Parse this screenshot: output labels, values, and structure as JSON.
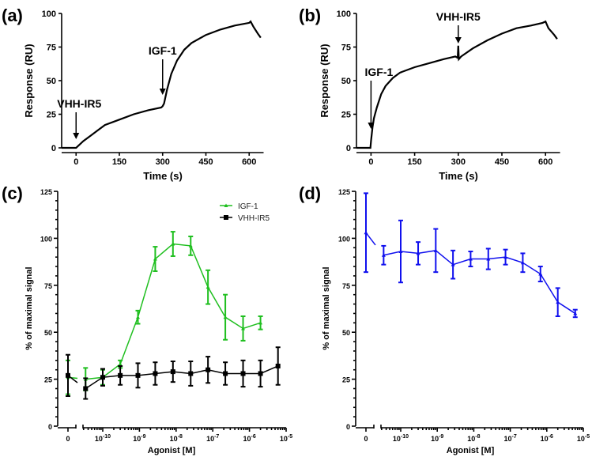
{
  "chart_data": [
    {
      "panel": "(a)",
      "type": "line",
      "xlabel": "Time (s)",
      "ylabel": "Response (RU)",
      "xlim": [
        -50,
        650
      ],
      "ylim": [
        0,
        100
      ],
      "xticks": [
        "0",
        "150",
        "300",
        "450",
        "600"
      ],
      "yticks": [
        "0",
        "25",
        "50",
        "75",
        "100"
      ],
      "annotations": [
        {
          "text": "VHH-IR5",
          "x": 0
        },
        {
          "text": "IGF-1",
          "x": 300
        }
      ],
      "series": [
        {
          "color": "#000000",
          "x": [
            -50,
            -2,
            0,
            25,
            50,
            75,
            100,
            150,
            200,
            250,
            295,
            300,
            305,
            315,
            330,
            350,
            375,
            400,
            450,
            500,
            550,
            600,
            605,
            615,
            630,
            640
          ],
          "y": [
            0,
            0,
            0,
            5,
            9,
            13,
            17,
            21,
            25,
            28,
            30,
            31,
            33,
            43,
            55,
            65,
            73,
            78,
            84,
            88,
            91,
            93,
            94,
            90,
            85,
            82
          ]
        }
      ]
    },
    {
      "panel": "(b)",
      "type": "line",
      "xlabel": "Time (s)",
      "ylabel": "Response (RU)",
      "xlim": [
        -50,
        650
      ],
      "ylim": [
        0,
        100
      ],
      "xticks": [
        "0",
        "150",
        "300",
        "450",
        "600"
      ],
      "yticks": [
        "0",
        "25",
        "50",
        "75",
        "100"
      ],
      "annotations": [
        {
          "text": "IGF-1",
          "x": 0
        },
        {
          "text": "VHH-IR5",
          "x": 300
        }
      ],
      "series": [
        {
          "color": "#000000",
          "x": [
            -50,
            -2,
            0,
            5,
            10,
            20,
            35,
            50,
            75,
            100,
            150,
            200,
            250,
            290,
            298,
            300,
            302,
            310,
            350,
            400,
            450,
            500,
            550,
            590,
            600,
            610,
            630,
            640
          ],
          "y": [
            0,
            0,
            5,
            15,
            22,
            30,
            40,
            46,
            52,
            56,
            60,
            63,
            66,
            68,
            67,
            76,
            66,
            68,
            74,
            80,
            85,
            89,
            91,
            93,
            94,
            89,
            84,
            81
          ]
        }
      ]
    },
    {
      "panel": "(c)",
      "type": "line",
      "xlabel": "Agonist [M]",
      "ylabel": "% of maximal signal",
      "xscale": "log (with 0 on broken axis)",
      "ylim": [
        0,
        125
      ],
      "xticks": [
        {
          "b": "0",
          "e": ""
        },
        {
          "b": "10",
          "e": "-10"
        },
        {
          "b": "10",
          "e": "-9"
        },
        {
          "b": "10",
          "e": "-8"
        },
        {
          "b": "10",
          "e": "-7"
        },
        {
          "b": "10",
          "e": "-6"
        },
        {
          "b": "10",
          "e": "-5"
        }
      ],
      "yticks": [
        "0",
        "25",
        "50",
        "75",
        "100",
        "125"
      ],
      "legend": "top-right",
      "series": [
        {
          "name": "IGF-1",
          "color": "#1fbf1f",
          "marker": "triangle",
          "x": [
            0,
            3.4e-11,
            1e-10,
            3e-10,
            9.1e-10,
            2.7e-09,
            8.2e-09,
            2.5e-08,
            7.4e-08,
            2.2e-07,
            6.7e-07,
            2e-06
          ],
          "y": [
            26,
            25,
            26,
            33,
            58,
            89,
            97,
            96,
            74,
            58,
            52,
            55
          ],
          "err": [
            9,
            6,
            4,
            2,
            3.5,
            6.5,
            6.5,
            5,
            9,
            12,
            6.5,
            3.5
          ]
        },
        {
          "name": "VHH-IR5",
          "color": "#000000",
          "marker": "square",
          "x": [
            0,
            3.4e-11,
            1e-10,
            3e-10,
            9.1e-10,
            2.7e-09,
            8.2e-09,
            2.5e-08,
            7.4e-08,
            2.2e-07,
            6.7e-07,
            2e-06,
            6e-06
          ],
          "y": [
            27,
            20,
            26,
            27,
            27,
            28,
            29,
            28,
            30,
            28,
            28,
            28,
            32
          ],
          "err": [
            11,
            5.5,
            4.5,
            5,
            6.5,
            6,
            5.5,
            6.5,
            7,
            6,
            7,
            7,
            10
          ]
        }
      ]
    },
    {
      "panel": "(d)",
      "type": "line",
      "xlabel": "Agonist [M]",
      "ylabel": "% of maximal signal",
      "xscale": "log (with 0 on broken axis)",
      "ylim": [
        0,
        125
      ],
      "xticks": [
        {
          "b": "0",
          "e": ""
        },
        {
          "b": "10",
          "e": "-10"
        },
        {
          "b": "10",
          "e": "-9"
        },
        {
          "b": "10",
          "e": "-8"
        },
        {
          "b": "10",
          "e": "-7"
        },
        {
          "b": "10",
          "e": "-6"
        },
        {
          "b": "10",
          "e": "-5"
        }
      ],
      "yticks": [
        "0",
        "25",
        "50",
        "75",
        "100",
        "125"
      ],
      "series": [
        {
          "color": "#1010ee",
          "marker": "triangle",
          "x": [
            0,
            3.4e-11,
            1e-10,
            3e-10,
            9.1e-10,
            2.7e-09,
            8.2e-09,
            2.5e-08,
            7.4e-08,
            2.2e-07,
            6.7e-07,
            2e-06,
            6e-06
          ],
          "y": [
            103,
            91,
            93,
            92,
            93.5,
            86,
            89,
            89,
            90,
            87,
            81,
            66,
            60
          ],
          "err": [
            21,
            5,
            16.5,
            6,
            11.5,
            7.5,
            4,
            5.5,
            4,
            5,
            4,
            7.5,
            2
          ]
        }
      ]
    }
  ]
}
